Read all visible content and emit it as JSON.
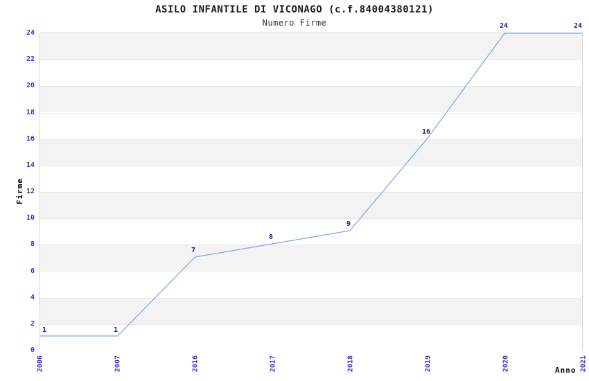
{
  "chart_data": {
    "type": "line",
    "title": "ASILO INFANTILE DI VICONAGO (c.f.84004380121)",
    "subtitle": "Numero Firme",
    "xlabel": "Anno",
    "ylabel": "Firme",
    "categories": [
      "2006",
      "2007",
      "2016",
      "2017",
      "2018",
      "2019",
      "2020",
      "2021"
    ],
    "series": [
      {
        "name": "Numero Firme",
        "values": [
          1,
          1,
          7,
          8,
          9,
          16,
          24,
          24
        ]
      }
    ],
    "point_labels": [
      "1",
      "1",
      "7",
      "8",
      "9",
      "16",
      "24",
      "24"
    ],
    "ylim": [
      0,
      24
    ],
    "ytick_step": 2,
    "legend": "none",
    "grid": "horizontal-bands",
    "colors": {
      "line": "#7aa7d8",
      "tick_label": "#3333cc",
      "data_label": "#1a1a8c",
      "band_gray": "#f3f3f3",
      "band_white": "#ffffff",
      "gridline": "#e8e8e8",
      "plot_border": "#d4d4d4",
      "title": "#1a1a1a",
      "subtitle": "#333333",
      "axis_label": "#000000"
    }
  }
}
